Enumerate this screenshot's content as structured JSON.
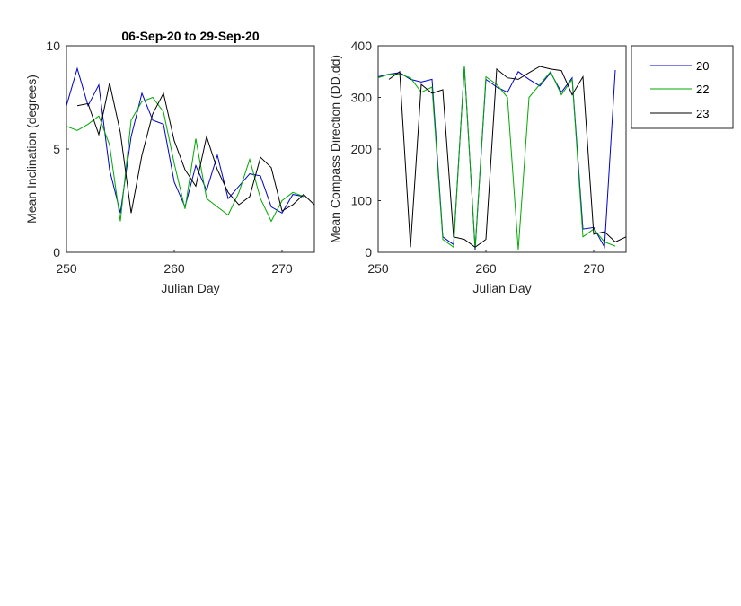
{
  "chart_data": [
    {
      "type": "line",
      "title": "06-Sep-20 to 29-Sep-20",
      "xlabel": "Julian Day",
      "ylabel": "Mean Inclination  (degrees)",
      "xlim": [
        250,
        273
      ],
      "ylim": [
        0,
        10
      ],
      "xticks": [
        "250",
        "260",
        "270"
      ],
      "yticks": [
        "0",
        "5",
        "10"
      ],
      "grid": false,
      "series": [
        {
          "name": "20",
          "color": "#0000cd",
          "points": [
            [
              250,
              7.1
            ],
            [
              251,
              8.9
            ],
            [
              252,
              7.1
            ],
            [
              253,
              8.1
            ],
            [
              254,
              4.0
            ],
            [
              255,
              1.9
            ],
            [
              256,
              5.6
            ],
            [
              257,
              7.7
            ],
            [
              258,
              6.4
            ],
            [
              259,
              6.2
            ],
            [
              260,
              3.4
            ],
            [
              261,
              2.2
            ],
            [
              262,
              4.2
            ],
            [
              263,
              3.0
            ],
            [
              264,
              4.7
            ],
            [
              265,
              2.6
            ],
            [
              266,
              3.2
            ],
            [
              267,
              3.8
            ],
            [
              268,
              3.7
            ],
            [
              269,
              2.2
            ],
            [
              270,
              1.9
            ],
            [
              271,
              2.8
            ],
            [
              272,
              2.7
            ]
          ]
        },
        {
          "name": "22",
          "color": "#00aa00",
          "points": [
            [
              250,
              6.1
            ],
            [
              251,
              5.9
            ],
            [
              252,
              6.2
            ],
            [
              253,
              6.6
            ],
            [
              254,
              5.2
            ],
            [
              255,
              1.5
            ],
            [
              256,
              6.4
            ],
            [
              257,
              7.3
            ],
            [
              258,
              7.5
            ],
            [
              259,
              6.8
            ],
            [
              260,
              4.3
            ],
            [
              261,
              2.1
            ],
            [
              262,
              5.5
            ],
            [
              263,
              2.6
            ],
            [
              264,
              2.2
            ],
            [
              265,
              1.8
            ],
            [
              266,
              2.9
            ],
            [
              267,
              4.5
            ],
            [
              268,
              2.6
            ],
            [
              269,
              1.5
            ],
            [
              270,
              2.5
            ],
            [
              271,
              2.9
            ],
            [
              272,
              2.7
            ]
          ]
        },
        {
          "name": "23",
          "color": "#000000",
          "points": [
            [
              251,
              7.1
            ],
            [
              252,
              7.2
            ],
            [
              253,
              5.7
            ],
            [
              254,
              8.2
            ],
            [
              255,
              5.8
            ],
            [
              256,
              1.9
            ],
            [
              257,
              4.7
            ],
            [
              258,
              6.7
            ],
            [
              259,
              7.7
            ],
            [
              260,
              5.4
            ],
            [
              261,
              4.0
            ],
            [
              262,
              3.2
            ],
            [
              263,
              5.6
            ],
            [
              264,
              4.0
            ],
            [
              265,
              2.9
            ],
            [
              266,
              2.3
            ],
            [
              267,
              2.7
            ],
            [
              268,
              4.6
            ],
            [
              269,
              4.1
            ],
            [
              270,
              2.0
            ],
            [
              271,
              2.3
            ],
            [
              272,
              2.8
            ],
            [
              273,
              2.3
            ]
          ]
        }
      ]
    },
    {
      "type": "line",
      "title": "",
      "xlabel": "Julian Day",
      "ylabel": "Mean Compass Direction (DD.dd)",
      "xlim": [
        250,
        273
      ],
      "ylim": [
        0,
        400
      ],
      "xticks": [
        "250",
        "260",
        "270"
      ],
      "yticks": [
        "0",
        "100",
        "200",
        "300",
        "400"
      ],
      "grid": false,
      "series": [
        {
          "name": "20",
          "color": "#0000cd",
          "points": [
            [
              250,
              340
            ],
            [
              251,
              345
            ],
            [
              252,
              348
            ],
            [
              253,
              335
            ],
            [
              254,
              330
            ],
            [
              255,
              335
            ],
            [
              256,
              30
            ],
            [
              257,
              15
            ],
            [
              258,
              360
            ],
            [
              259,
              5
            ],
            [
              260,
              335
            ],
            [
              261,
              320
            ],
            [
              262,
              310
            ],
            [
              263,
              350
            ],
            [
              264,
              335
            ],
            [
              265,
              322
            ],
            [
              266,
              348
            ],
            [
              267,
              310
            ],
            [
              268,
              338
            ],
            [
              269,
              45
            ],
            [
              270,
              48
            ],
            [
              271,
              10
            ],
            [
              272,
              353
            ]
          ]
        },
        {
          "name": "22",
          "color": "#00aa00",
          "points": [
            [
              250,
              338
            ],
            [
              251,
              345
            ],
            [
              252,
              345
            ],
            [
              253,
              338
            ],
            [
              254,
              310
            ],
            [
              255,
              320
            ],
            [
              256,
              25
            ],
            [
              257,
              10
            ],
            [
              258,
              360
            ],
            [
              259,
              8
            ],
            [
              260,
              340
            ],
            [
              261,
              325
            ],
            [
              262,
              300
            ],
            [
              263,
              5
            ],
            [
              264,
              300
            ],
            [
              265,
              325
            ],
            [
              266,
              350
            ],
            [
              267,
              305
            ],
            [
              268,
              335
            ],
            [
              269,
              30
            ],
            [
              270,
              45
            ],
            [
              271,
              20
            ],
            [
              272,
              12
            ]
          ]
        },
        {
          "name": "23",
          "color": "#000000",
          "points": [
            [
              251,
              335
            ],
            [
              252,
              350
            ],
            [
              253,
              10
            ],
            [
              254,
              325
            ],
            [
              255,
              308
            ],
            [
              256,
              315
            ],
            [
              257,
              30
            ],
            [
              258,
              25
            ],
            [
              259,
              10
            ],
            [
              260,
              25
            ],
            [
              261,
              355
            ],
            [
              262,
              338
            ],
            [
              263,
              335
            ],
            [
              264,
              348
            ],
            [
              265,
              360
            ],
            [
              266,
              355
            ],
            [
              267,
              352
            ],
            [
              268,
              305
            ],
            [
              269,
              340
            ],
            [
              270,
              35
            ],
            [
              271,
              40
            ],
            [
              272,
              20
            ],
            [
              273,
              30
            ]
          ]
        }
      ]
    }
  ],
  "legend": {
    "placement": "right",
    "entries": [
      {
        "label": "20",
        "color": "#0000cd"
      },
      {
        "label": "22",
        "color": "#00aa00"
      },
      {
        "label": "23",
        "color": "#000000"
      }
    ]
  }
}
